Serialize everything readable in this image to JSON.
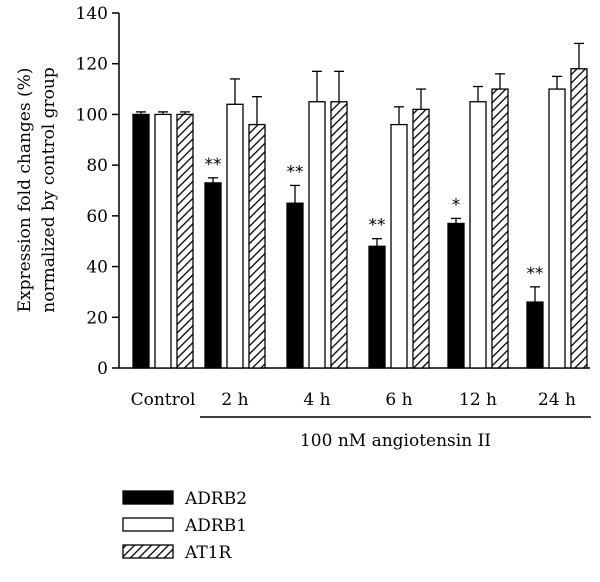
{
  "chart_data": {
    "type": "bar",
    "categories": [
      "Control",
      "2 h",
      "4 h",
      "6 h",
      "12 h",
      "24 h"
    ],
    "ylabel_line1": "Expression fold changes (%)",
    "ylabel_line2": "normalized by control group",
    "group_label": "100 nM angiotensin II",
    "group_spans": [
      "2 h",
      "24 h"
    ],
    "ylim": [
      0,
      140
    ],
    "yticks": [
      0,
      20,
      40,
      60,
      80,
      100,
      120,
      140
    ],
    "series": [
      {
        "name": "ADRB2",
        "fill": "solid",
        "color": "#000000",
        "values": [
          100,
          73,
          65,
          48,
          57,
          26
        ],
        "errors": [
          1,
          2,
          7,
          3,
          2,
          6
        ],
        "significance": [
          "",
          "**",
          "**",
          "**",
          "*",
          "**"
        ]
      },
      {
        "name": "ADRB1",
        "fill": "open",
        "color": "#ffffff",
        "values": [
          100,
          104,
          105,
          96,
          105,
          110
        ],
        "errors": [
          1,
          10,
          12,
          7,
          6,
          5
        ],
        "significance": [
          "",
          "",
          "",
          "",
          "",
          ""
        ]
      },
      {
        "name": "AT1R",
        "fill": "hatched",
        "color": "#000000",
        "values": [
          100,
          96,
          105,
          102,
          110,
          118
        ],
        "errors": [
          1,
          11,
          12,
          8,
          6,
          10
        ],
        "significance": [
          "",
          "",
          "",
          "",
          "",
          ""
        ]
      }
    ],
    "legend_position": "bottom-left",
    "grid": false
  }
}
